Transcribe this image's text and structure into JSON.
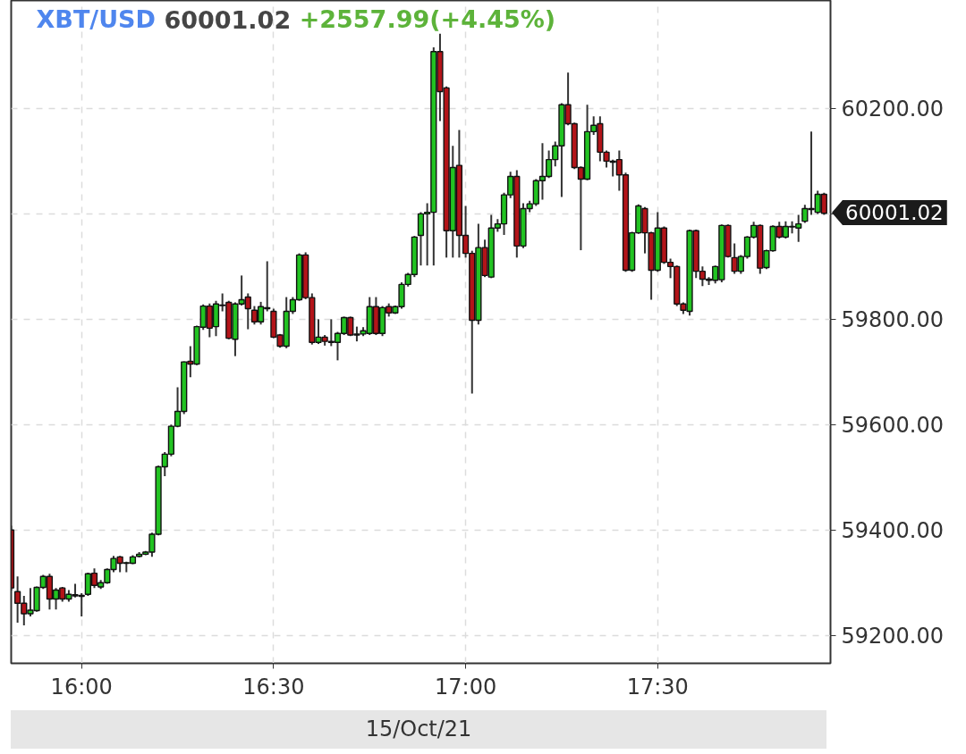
{
  "chart_data": {
    "type": "candlestick",
    "title": "XBT/USD 60001.02 +2557.99(+4.45%)",
    "xlabel": "15/Oct/21",
    "x": [
      15.8167,
      15.8333,
      15.85,
      15.8667,
      15.8833,
      15.9,
      15.9167,
      15.9333,
      15.95,
      15.9667,
      15.9833,
      16,
      16.0167,
      16.0333,
      16.05,
      16.0667,
      16.0833,
      16.1,
      16.1167,
      16.1333,
      16.15,
      16.1667,
      16.1833,
      16.2,
      16.2167,
      16.2333,
      16.25,
      16.2667,
      16.2833,
      16.3,
      16.3167,
      16.3333,
      16.35,
      16.3667,
      16.3833,
      16.4,
      16.4167,
      16.4333,
      16.45,
      16.4667,
      16.4833,
      16.5,
      16.5167,
      16.5333,
      16.55,
      16.5667,
      16.5833,
      16.6,
      16.6167,
      16.6333,
      16.65,
      16.6667,
      16.6833,
      16.7,
      16.7167,
      16.7333,
      16.75,
      16.7667,
      16.7833,
      16.8,
      16.8167,
      16.8333,
      16.85,
      16.8667,
      16.8833,
      16.9,
      16.9167,
      16.9333,
      16.95,
      16.9667,
      16.9833,
      17,
      17.0167,
      17.0333,
      17.05,
      17.0667,
      17.0833,
      17.1,
      17.1167,
      17.1333,
      17.15,
      17.1667,
      17.1833,
      17.2,
      17.2167,
      17.2333,
      17.25,
      17.2667,
      17.2833,
      17.3,
      17.3167,
      17.3333,
      17.35,
      17.3667,
      17.3833,
      17.4,
      17.4167,
      17.4333,
      17.45,
      17.4667,
      17.4833,
      17.5,
      17.5167,
      17.5333,
      17.55,
      17.5667,
      17.5833,
      17.6,
      17.6167,
      17.6333,
      17.65,
      17.6667,
      17.6833,
      17.7,
      17.7167,
      17.7333,
      17.75,
      17.7667,
      17.7833,
      17.8,
      17.8167,
      17.8333,
      17.85,
      17.8667,
      17.8833,
      17.9,
      17.9167,
      17.9333
    ],
    "ohlc": [
      [
        59400,
        59408,
        59285,
        59290
      ],
      [
        59283,
        59312,
        59224,
        59261
      ],
      [
        59261,
        59275,
        59219,
        59241
      ],
      [
        59241,
        59290,
        59236,
        59248
      ],
      [
        59247,
        59293,
        59245,
        59291
      ],
      [
        59291,
        59315,
        59288,
        59312
      ],
      [
        59312,
        59317,
        59249,
        59269
      ],
      [
        59269,
        59290,
        59249,
        59286
      ],
      [
        59290,
        59292,
        59264,
        59269
      ],
      [
        59269,
        59286,
        59264,
        59278
      ],
      [
        59275,
        59298,
        59272,
        59277
      ],
      [
        59276,
        59280,
        59236,
        59274
      ],
      [
        59278,
        59319,
        59275,
        59317
      ],
      [
        59318,
        59327,
        59290,
        59295
      ],
      [
        59292,
        59305,
        59288,
        59300
      ],
      [
        59300,
        59327,
        59298,
        59325
      ],
      [
        59325,
        59351,
        59320,
        59346
      ],
      [
        59349,
        59351,
        59320,
        59337
      ],
      [
        59337,
        59340,
        59320,
        59338
      ],
      [
        59337,
        59352,
        59335,
        59349
      ],
      [
        59350,
        59358,
        59348,
        59354
      ],
      [
        59354,
        59360,
        59352,
        59358
      ],
      [
        59358,
        59395,
        59349,
        59392
      ],
      [
        59392,
        59522,
        59390,
        59520
      ],
      [
        59520,
        59548,
        59502,
        59544
      ],
      [
        59544,
        59600,
        59540,
        59597
      ],
      [
        59597,
        59671,
        59595,
        59625
      ],
      [
        59625,
        59720,
        59620,
        59719
      ],
      [
        59720,
        59749,
        59690,
        59715
      ],
      [
        59715,
        59788,
        59713,
        59786
      ],
      [
        59785,
        59828,
        59780,
        59825
      ],
      [
        59825,
        59830,
        59766,
        59783
      ],
      [
        59786,
        59835,
        59768,
        59829
      ],
      [
        59826,
        59849,
        59815,
        59827
      ],
      [
        59832,
        59835,
        59762,
        59764
      ],
      [
        59762,
        59832,
        59730,
        59829
      ],
      [
        59829,
        59883,
        59826,
        59837
      ],
      [
        59842,
        59849,
        59781,
        59820
      ],
      [
        59817,
        59825,
        59790,
        59795
      ],
      [
        59795,
        59833,
        59790,
        59824
      ],
      [
        59822,
        59910,
        59815,
        59820
      ],
      [
        59815,
        59820,
        59764,
        59766
      ],
      [
        59770,
        59772,
        59746,
        59749
      ],
      [
        59749,
        59842,
        59745,
        59815
      ],
      [
        59815,
        59842,
        59810,
        59837
      ],
      [
        59837,
        59925,
        59835,
        59922
      ],
      [
        59922,
        59927,
        59838,
        59841
      ],
      [
        59841,
        59849,
        59752,
        59756
      ],
      [
        59756,
        59800,
        59753,
        59766
      ],
      [
        59766,
        59770,
        59750,
        59758
      ],
      [
        59758,
        59800,
        59749,
        59756
      ],
      [
        59756,
        59776,
        59722,
        59773
      ],
      [
        59773,
        59805,
        59770,
        59803
      ],
      [
        59803,
        59805,
        59768,
        59770
      ],
      [
        59770,
        59786,
        59758,
        59772
      ],
      [
        59772,
        59785,
        59768,
        59778
      ],
      [
        59773,
        59842,
        59770,
        59824
      ],
      [
        59824,
        59842,
        59770,
        59773
      ],
      [
        59773,
        59825,
        59768,
        59822
      ],
      [
        59824,
        59830,
        59805,
        59812
      ],
      [
        59812,
        59826,
        59810,
        59824
      ],
      [
        59824,
        59870,
        59820,
        59866
      ],
      [
        59866,
        59888,
        59862,
        59885
      ],
      [
        59885,
        59958,
        59880,
        59956
      ],
      [
        59959,
        60003,
        59902,
        60000
      ],
      [
        60000,
        60020,
        59902,
        60003
      ],
      [
        60003,
        60316,
        59902,
        60308
      ],
      [
        60308,
        60342,
        60176,
        60232
      ],
      [
        60239,
        60242,
        59917,
        59968
      ],
      [
        59968,
        60129,
        59917,
        60088
      ],
      [
        60092,
        60159,
        59917,
        59959
      ],
      [
        59959,
        60015,
        59917,
        59925
      ],
      [
        59925,
        59930,
        59659,
        59798
      ],
      [
        59798,
        59981,
        59790,
        59936
      ],
      [
        59936,
        59951,
        59880,
        59883
      ],
      [
        59880,
        59998,
        59878,
        59973
      ],
      [
        59973,
        59990,
        59966,
        59981
      ],
      [
        59981,
        60040,
        59960,
        60036
      ],
      [
        60036,
        60080,
        60030,
        60071
      ],
      [
        60071,
        60083,
        59917,
        59939
      ],
      [
        59939,
        60020,
        59935,
        60010
      ],
      [
        60010,
        60025,
        60003,
        60019
      ],
      [
        60019,
        60066,
        60015,
        60063
      ],
      [
        60063,
        60134,
        60027,
        60071
      ],
      [
        60071,
        60120,
        60068,
        60103
      ],
      [
        60103,
        60137,
        60090,
        60129
      ],
      [
        60129,
        60210,
        60032,
        60207
      ],
      [
        60207,
        60268,
        60168,
        60171
      ],
      [
        60171,
        60173,
        60085,
        60088
      ],
      [
        60088,
        60090,
        59931,
        60066
      ],
      [
        60066,
        60207,
        60064,
        60156
      ],
      [
        60156,
        60185,
        60150,
        60168
      ],
      [
        60171,
        60185,
        60100,
        60117
      ],
      [
        60117,
        60120,
        60088,
        60100
      ],
      [
        60100,
        60103,
        60071,
        60098
      ],
      [
        60103,
        60120,
        60044,
        60074
      ],
      [
        60074,
        60078,
        59890,
        59893
      ],
      [
        59893,
        59966,
        59890,
        59964
      ],
      [
        59964,
        60018,
        59962,
        60015
      ],
      [
        60010,
        60013,
        59925,
        59964
      ],
      [
        59964,
        59966,
        59837,
        59893
      ],
      [
        59893,
        60003,
        59890,
        59973
      ],
      [
        59973,
        59976,
        59905,
        59908
      ],
      [
        59908,
        59915,
        59878,
        59900
      ],
      [
        59900,
        59902,
        59825,
        59829
      ],
      [
        59829,
        59832,
        59810,
        59817
      ],
      [
        59815,
        59970,
        59807,
        59968
      ],
      [
        59968,
        59970,
        59878,
        59891
      ],
      [
        59891,
        59900,
        59863,
        59876
      ],
      [
        59876,
        59880,
        59865,
        59874
      ],
      [
        59874,
        59902,
        59868,
        59900
      ],
      [
        59875,
        59980,
        59870,
        59978
      ],
      [
        59978,
        59980,
        59917,
        59919
      ],
      [
        59917,
        59944,
        59886,
        59891
      ],
      [
        59891,
        59922,
        59886,
        59919
      ],
      [
        59919,
        59958,
        59915,
        59956
      ],
      [
        59956,
        59985,
        59953,
        59978
      ],
      [
        59978,
        59980,
        59886,
        59897
      ],
      [
        59898,
        59932,
        59895,
        59930
      ],
      [
        59930,
        59978,
        59928,
        59976
      ],
      [
        59976,
        59985,
        59953,
        59956
      ],
      [
        59956,
        59986,
        59953,
        59976
      ],
      [
        59976,
        59986,
        59963,
        59975
      ],
      [
        59973,
        59998,
        59947,
        59981
      ],
      [
        59986,
        60017,
        59983,
        60010
      ],
      [
        60010,
        60156,
        59998,
        60008
      ],
      [
        60003,
        60044,
        60000,
        60037
      ],
      [
        60037,
        60040,
        59998,
        60001.02
      ]
    ],
    "colors": [
      "#b31419",
      "#b31419",
      "#b31419",
      "#22c322",
      "#22c322",
      "#22c322",
      "#b31419",
      "#22c322",
      "#b31419",
      "#22c322",
      "#22c322",
      "#b31419",
      "#22c322",
      "#b31419",
      "#22c322",
      "#22c322",
      "#22c322",
      "#b31419",
      "#22c322",
      "#22c322",
      "#22c322",
      "#22c322",
      "#22c322",
      "#22c322",
      "#22c322",
      "#22c322",
      "#22c322",
      "#22c322",
      "#b31419",
      "#22c322",
      "#22c322",
      "#b31419",
      "#22c322",
      "#22c322",
      "#b31419",
      "#22c322",
      "#22c322",
      "#b31419",
      "#b31419",
      "#22c322",
      "#b31419",
      "#b31419",
      "#b31419",
      "#22c322",
      "#22c322",
      "#22c322",
      "#b31419",
      "#b31419",
      "#22c322",
      "#b31419",
      "#b31419",
      "#22c322",
      "#22c322",
      "#b31419",
      "#22c322",
      "#22c322",
      "#22c322",
      "#b31419",
      "#22c322",
      "#b31419",
      "#22c322",
      "#22c322",
      "#22c322",
      "#22c322",
      "#22c322",
      "#22c322",
      "#22c322",
      "#b31419",
      "#b31419",
      "#22c322",
      "#b31419",
      "#b31419",
      "#b31419",
      "#22c322",
      "#b31419",
      "#22c322",
      "#22c322",
      "#22c322",
      "#22c322",
      "#b31419",
      "#22c322",
      "#22c322",
      "#22c322",
      "#22c322",
      "#22c322",
      "#22c322",
      "#22c322",
      "#b31419",
      "#b31419",
      "#b31419",
      "#22c322",
      "#22c322",
      "#b31419",
      "#b31419",
      "#b31419",
      "#b31419",
      "#b31419",
      "#22c322",
      "#22c322",
      "#b31419",
      "#b31419",
      "#22c322",
      "#b31419",
      "#b31419",
      "#b31419",
      "#b31419",
      "#22c322",
      "#b31419",
      "#b31419",
      "#b31419",
      "#22c322",
      "#22c322",
      "#b31419",
      "#b31419",
      "#22c322",
      "#22c322",
      "#22c322",
      "#b31419",
      "#22c322",
      "#22c322",
      "#b31419",
      "#22c322",
      "#b31419",
      "#22c322",
      "#22c322",
      "#b31419",
      "#22c322",
      "#b31419"
    ],
    "xlim": [
      15.8167,
      17.95
    ],
    "xticks": [
      {
        "value": 16,
        "label": "16:00"
      },
      {
        "value": 16.5,
        "label": "16:30"
      },
      {
        "value": 17,
        "label": "17:00"
      },
      {
        "value": 17.5,
        "label": "17:30"
      }
    ],
    "ylim": [
      59147,
      60405
    ],
    "yticks": [
      {
        "value": 59200,
        "label": "59200.00"
      },
      {
        "value": 59400,
        "label": "59400.00"
      },
      {
        "value": 59600,
        "label": "59600.00"
      },
      {
        "value": 59800,
        "label": "59800.00"
      },
      {
        "value": 60000,
        "label": null
      },
      {
        "value": 60200,
        "label": "60200.00"
      }
    ],
    "grid": true,
    "annotations": [
      "60001.02"
    ]
  }
}
